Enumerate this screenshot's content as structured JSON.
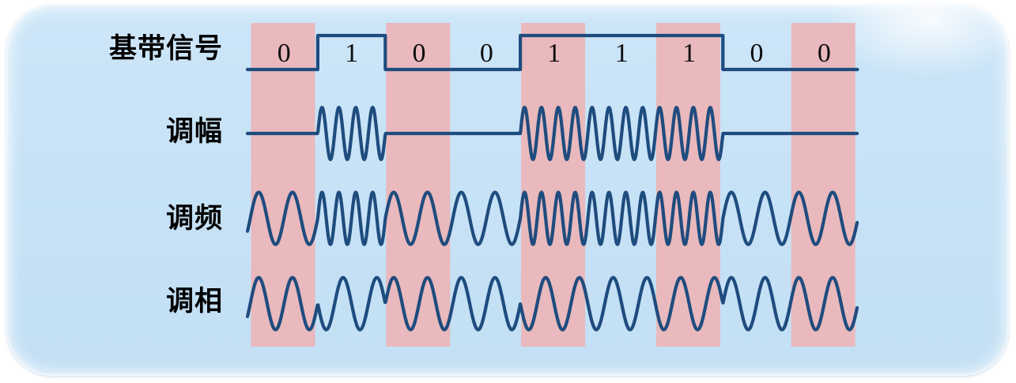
{
  "figure": {
    "name": "digital-modulation-waveforms",
    "colors": {
      "panel_bg": "#c7e2f6",
      "stripe": "#e9b9bd",
      "wave": "#1f4c7e",
      "label_text": "#000000",
      "digit_text": "#0d0d0d",
      "page_bg": "#ffffff"
    }
  },
  "chart_data": {
    "type": "line",
    "bits": [
      0,
      1,
      0,
      0,
      1,
      1,
      1,
      0,
      0
    ],
    "bit_labels": [
      "0",
      "1",
      "0",
      "0",
      "1",
      "1",
      "1",
      "0",
      "0"
    ],
    "highlighted_bit_indices": [
      0,
      2,
      4,
      6,
      8
    ],
    "rows": [
      {
        "label": "基带信号",
        "type": "square",
        "high_bit": "1",
        "low_bit": "0"
      },
      {
        "label": "调幅",
        "type": "ask",
        "carrier_cycles_per_bit": 4
      },
      {
        "label": "调频",
        "type": "fsk",
        "cycles_per_bit_0": 2,
        "cycles_per_bit_1": 4
      },
      {
        "label": "调相",
        "type": "psk",
        "cycles_per_bit": 2,
        "phase_shift_deg": 180
      }
    ]
  }
}
